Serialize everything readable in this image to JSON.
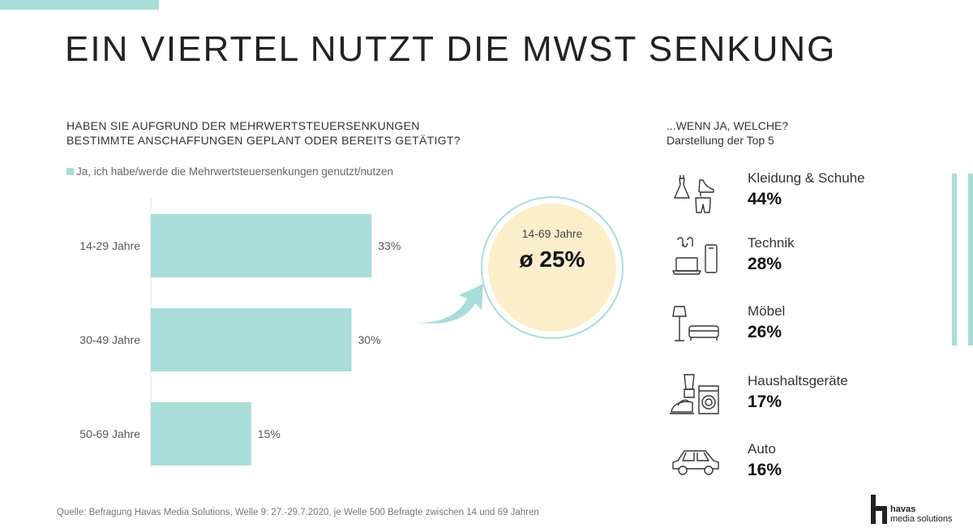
{
  "title": "EIN VIERTEL NUTZT DIE MWST SENKUNG",
  "question": {
    "line1": "HABEN SIE AUFGRUND DER MEHRWERTSTEUERSENKUNGEN",
    "line2": "BESTIMMTE ANSCHAFFUNGEN GEPLANT ODER BEREITS GETÄTIGT?"
  },
  "legend_label": "Ja, ich habe/werde die Mehrwertsteuersenkungen genutzt/nutzen",
  "colors": {
    "bar": "#a8ddd9",
    "accent": "#a8ddd9",
    "highlight": "#fbeecb"
  },
  "chart_data": {
    "type": "bar",
    "orientation": "horizontal",
    "categories": [
      "14-29 Jahre",
      "30-49 Jahre",
      "50-69 Jahre"
    ],
    "values": [
      33,
      30,
      15
    ],
    "value_labels": [
      "33%",
      "30%",
      "15%"
    ],
    "unit": "%",
    "legend": "Ja, ich habe/werde die Mehrwertsteuersenkungen genutzt/nutzen",
    "xlim": [
      0,
      40
    ],
    "grid": false
  },
  "average": {
    "label": "14-69 Jahre",
    "value": "ø 25%"
  },
  "top5": {
    "title": "...WENN JA, WELCHE?",
    "subtitle": "Darstellung der Top 5",
    "items": [
      {
        "name": "Kleidung & Schuhe",
        "value": "44%",
        "icon": "clothing-icon"
      },
      {
        "name": "Technik",
        "value": "28%",
        "icon": "tech-devices-icon"
      },
      {
        "name": "Möbel",
        "value": "26%",
        "icon": "furniture-icon"
      },
      {
        "name": "Haushaltsgeräte",
        "value": "17%",
        "icon": "household-appliances-icon"
      },
      {
        "name": "Auto",
        "value": "16%",
        "icon": "car-icon"
      }
    ]
  },
  "source": "Quelle: Befragung Havas Media Solutions, Welle 9: 27.-29.7.2020, je Welle 500 Befragte zwischen 14 und 69 Jahren",
  "logo": {
    "line1": "havas",
    "line2": "media solutions"
  }
}
